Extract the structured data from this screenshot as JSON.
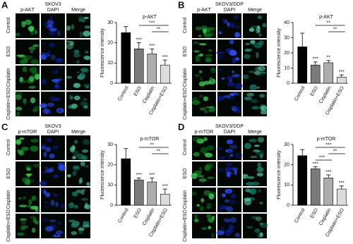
{
  "panels": [
    {
      "letter": "A",
      "cell_line": "SKOV3",
      "image_columns": [
        "p-AKT",
        "DAPI",
        "Merge"
      ],
      "image_rows": [
        "Control",
        "ESO",
        "Cisplatin",
        "Cisplatin+ESO"
      ]
    },
    {
      "letter": "B",
      "cell_line": "SKOV3/DDP",
      "image_columns": [
        "p-AKT",
        "DAPI",
        "Merge"
      ],
      "image_rows": [
        "Control",
        "ESO",
        "Cisplatin",
        "Cisplatin+ESO"
      ]
    },
    {
      "letter": "C",
      "cell_line": "SKOV3",
      "image_columns": [
        "p-mTOR",
        "DAPI",
        "Merge"
      ],
      "image_rows": [
        "Control",
        "ESO",
        "Cisplatin",
        "Cisplatin+ESO"
      ]
    },
    {
      "letter": "D",
      "cell_line": "SKOV3/DDP",
      "image_columns": [
        "p-mTOR",
        "DAPI",
        "Merge"
      ],
      "image_rows": [
        "Control",
        "ESO",
        "Cisplatin",
        "Cisplatin+ESO"
      ]
    }
  ],
  "chart_data": [
    {
      "type": "bar",
      "title": "p-AKT",
      "y_label": "Fluorescence intensity",
      "categories": [
        "Control",
        "ESO",
        "Cisplatin",
        "Cisplatin+ESO"
      ],
      "values": [
        25,
        17,
        14.5,
        9
      ],
      "errors": [
        3,
        3,
        2.5,
        2.5
      ],
      "colors": [
        "#000000",
        "#7a7a7a",
        "#adadad",
        "#dcdcdc"
      ],
      "significance": [
        null,
        "***",
        "***",
        "***"
      ],
      "comparisons": [
        {
          "from": 1,
          "to": 3,
          "label": "***"
        },
        {
          "from": 2,
          "to": 3,
          "label": "**"
        }
      ],
      "ylim": [
        0,
        30
      ],
      "yticks": [
        0,
        10,
        20,
        30
      ]
    },
    {
      "type": "bar",
      "title": "p-AKT",
      "y_label": "Fluorescence intensity",
      "categories": [
        "Control",
        "ESO",
        "Cisplatin",
        "Cisplatin+ESO"
      ],
      "values": [
        24,
        12,
        13.5,
        4
      ],
      "errors": [
        9,
        2,
        1.5,
        1.5
      ],
      "colors": [
        "#000000",
        "#7a7a7a",
        "#adadad",
        "#dcdcdc"
      ],
      "significance": [
        null,
        "***",
        "**",
        "***"
      ],
      "comparisons": [
        {
          "from": 1,
          "to": 3,
          "label": "**"
        },
        {
          "from": 2,
          "to": 3,
          "label": "**"
        }
      ],
      "ylim": [
        0,
        40
      ],
      "yticks": [
        0,
        10,
        20,
        30,
        40
      ]
    },
    {
      "type": "bar",
      "title": "p-mTOR",
      "y_label": "Fluorescence intensity",
      "categories": [
        "Control",
        "ESO",
        "Cisplatin",
        "Cisplatin+ESO"
      ],
      "values": [
        23,
        12.5,
        11.5,
        5.5
      ],
      "errors": [
        5,
        1,
        2,
        2.5
      ],
      "colors": [
        "#000000",
        "#7a7a7a",
        "#adadad",
        "#dcdcdc"
      ],
      "significance": [
        null,
        "***",
        "***",
        "***"
      ],
      "comparisons": [
        {
          "from": 1,
          "to": 3,
          "label": "**"
        },
        {
          "from": 2,
          "to": 3,
          "label": "**"
        }
      ],
      "ylim": [
        0,
        30
      ],
      "yticks": [
        0,
        10,
        20,
        30
      ]
    },
    {
      "type": "bar",
      "title": "p-mTOR",
      "y_label": "Fluorescence intensity",
      "categories": [
        "Control",
        "ESO",
        "Cisplatin",
        "Cisplatin+ESO"
      ],
      "values": [
        24.5,
        18,
        13.5,
        8
      ],
      "errors": [
        3,
        1,
        1.5,
        1.5
      ],
      "colors": [
        "#000000",
        "#7a7a7a",
        "#adadad",
        "#dcdcdc"
      ],
      "significance": [
        null,
        "***",
        "***",
        "***"
      ],
      "comparisons": [
        {
          "from": 1,
          "to": 3,
          "label": "***"
        },
        {
          "from": 2,
          "to": 3,
          "label": "**"
        },
        {
          "from": 1,
          "to": 2,
          "label": "***"
        }
      ],
      "ylim": [
        0,
        30
      ],
      "yticks": [
        0,
        10,
        20,
        30
      ]
    }
  ]
}
